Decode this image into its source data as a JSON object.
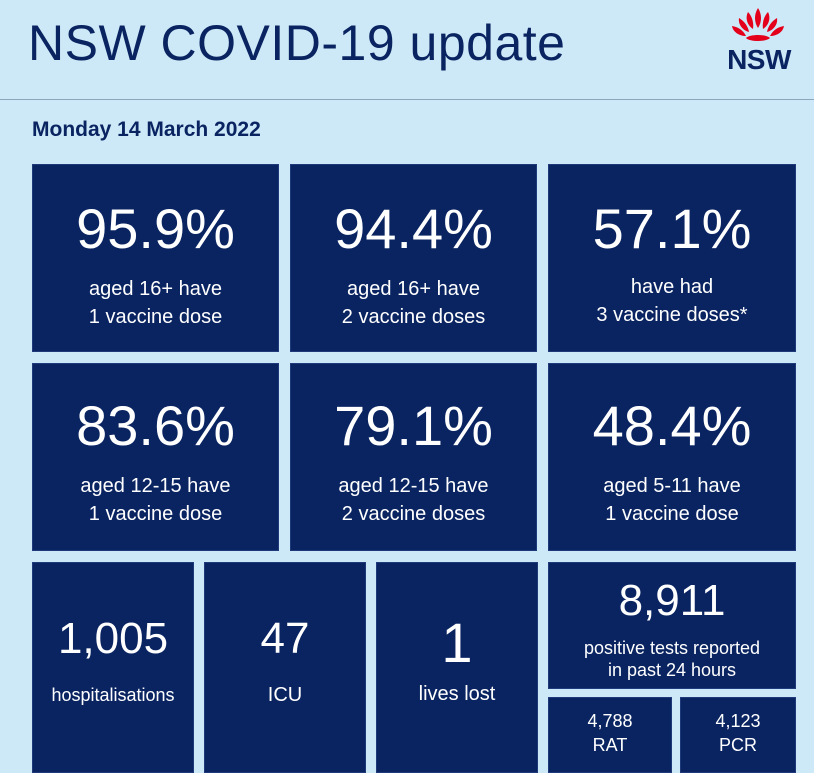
{
  "header": {
    "title": "NSW COVID-19 update",
    "logo_text": "NSW",
    "logo_icon": "waratah-icon"
  },
  "date": "Monday 14 March 2022",
  "vaccine_tiles": [
    {
      "value": "95.9%",
      "line1": "aged 16+ have",
      "line2": "1 vaccine dose"
    },
    {
      "value": "94.4%",
      "line1": "aged 16+ have",
      "line2": "2 vaccine doses"
    },
    {
      "value": "57.1%",
      "line1": "have had",
      "line2": "3 vaccine doses*"
    },
    {
      "value": "83.6%",
      "line1": "aged 12-15 have",
      "line2": "1 vaccine dose"
    },
    {
      "value": "79.1%",
      "line1": "aged 12-15 have",
      "line2": "2 vaccine doses"
    },
    {
      "value": "48.4%",
      "line1": "aged 5-11 have",
      "line2": "1 vaccine dose"
    }
  ],
  "stats": {
    "hospitalisations": {
      "value": "1,005",
      "label": "hospitalisations"
    },
    "icu": {
      "value": "47",
      "label": "ICU"
    },
    "lives_lost": {
      "value": "1",
      "label": "lives lost"
    },
    "positive_tests": {
      "value": "8,911",
      "line1": "positive tests reported",
      "line2": "in past 24 hours"
    },
    "rat": {
      "value": "4,788",
      "label": "RAT"
    },
    "pcr": {
      "value": "4,123",
      "label": "PCR"
    }
  },
  "colors": {
    "background": "#cde9f8",
    "tile": "#0a2461",
    "logo_red": "#e4001b"
  }
}
